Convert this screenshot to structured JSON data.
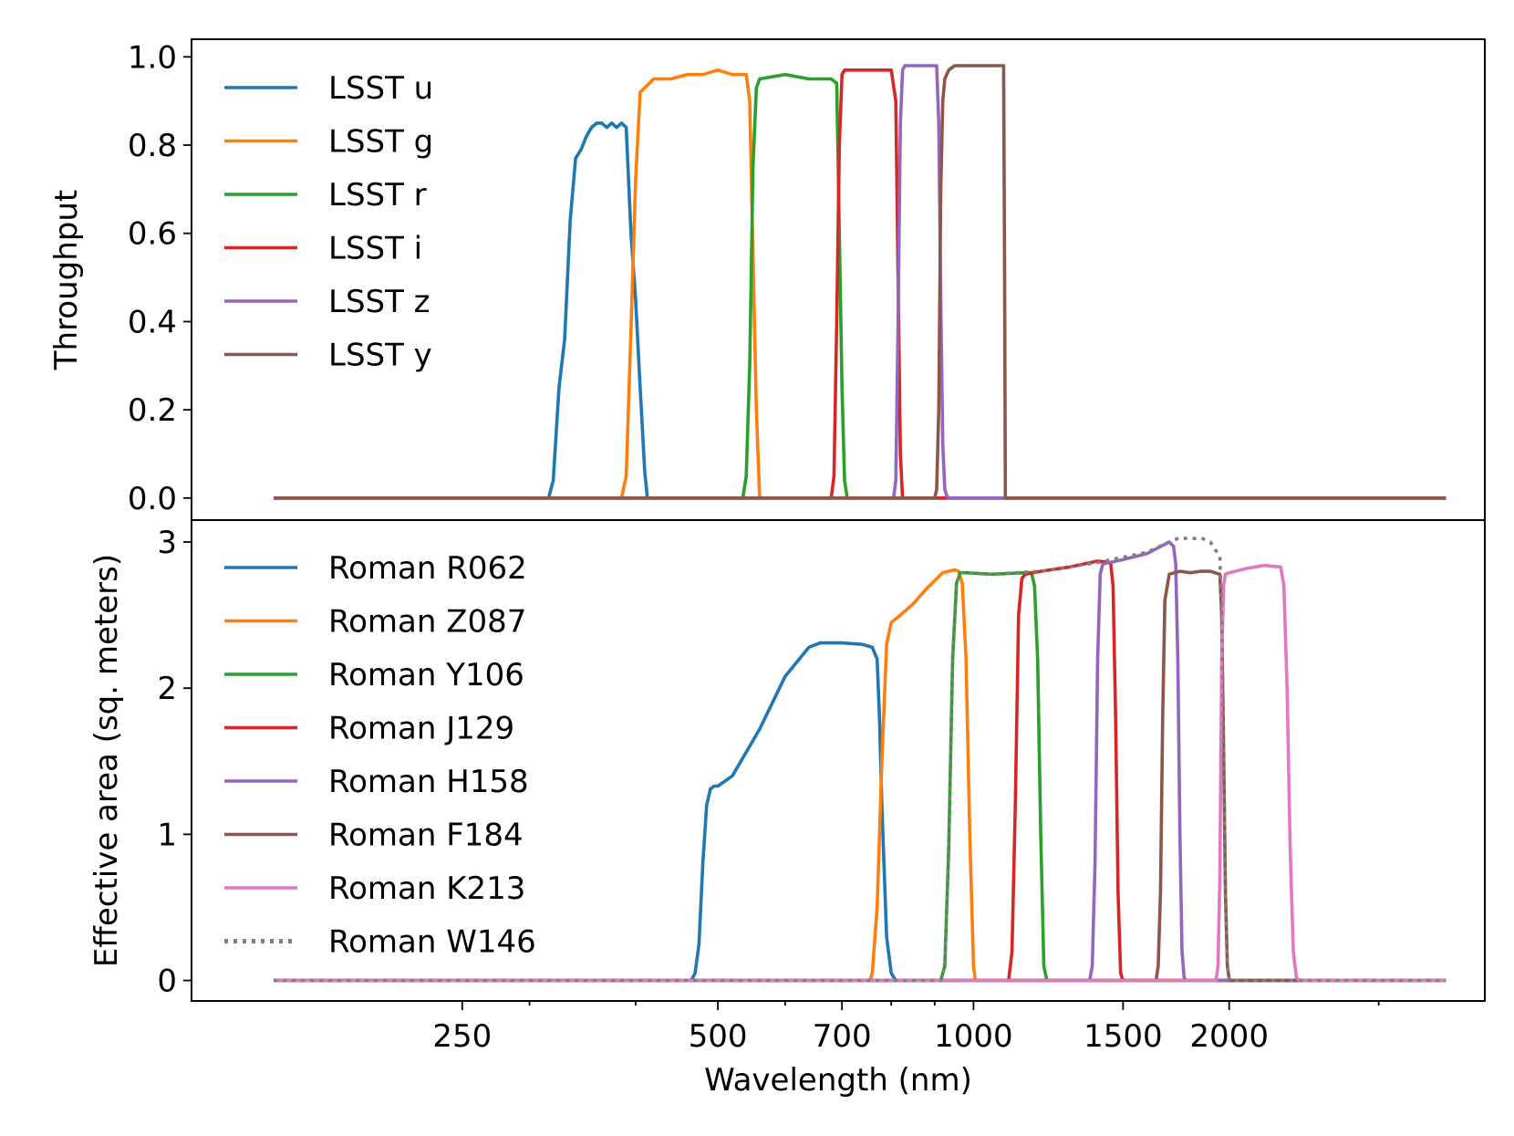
{
  "chart_data": [
    {
      "type": "line",
      "panel": "top",
      "ylabel": "Throughput",
      "xlabel": "",
      "xscale": "log",
      "xlim": [
        120,
        4000
      ],
      "ylim": [
        -0.05,
        1.04
      ],
      "yticks": [
        0.0,
        0.2,
        0.4,
        0.6,
        0.8,
        1.0
      ],
      "ytick_labels": [
        "0.0",
        "0.2",
        "0.4",
        "0.6",
        "0.8",
        "1.0"
      ],
      "legend_position": "top-left",
      "series": [
        {
          "name": "LSST u",
          "color": "#1f77b4",
          "dash": "solid",
          "x": [
            150,
            316,
            320,
            325,
            330,
            335,
            340,
            345,
            350,
            355,
            360,
            365,
            370,
            375,
            380,
            385,
            390,
            395,
            400,
            405,
            410,
            413,
            3600
          ],
          "y": [
            0,
            0,
            0.04,
            0.25,
            0.36,
            0.63,
            0.77,
            0.79,
            0.82,
            0.84,
            0.85,
            0.85,
            0.84,
            0.85,
            0.84,
            0.85,
            0.84,
            0.6,
            0.45,
            0.25,
            0.06,
            0,
            0
          ]
        },
        {
          "name": "LSST g",
          "color": "#ff7f0e",
          "dash": "solid",
          "x": [
            150,
            385,
            390,
            395,
            400,
            405,
            410,
            420,
            440,
            460,
            480,
            500,
            520,
            540,
            545,
            550,
            555,
            560,
            3600
          ],
          "y": [
            0,
            0,
            0.05,
            0.38,
            0.72,
            0.92,
            0.93,
            0.95,
            0.95,
            0.96,
            0.96,
            0.97,
            0.96,
            0.96,
            0.9,
            0.55,
            0.2,
            0,
            0
          ]
        },
        {
          "name": "LSST r",
          "color": "#2ca02c",
          "dash": "solid",
          "x": [
            150,
            535,
            540,
            545,
            550,
            555,
            560,
            600,
            640,
            680,
            690,
            695,
            700,
            705,
            710,
            3600
          ],
          "y": [
            0,
            0,
            0.05,
            0.3,
            0.75,
            0.93,
            0.95,
            0.96,
            0.95,
            0.95,
            0.94,
            0.6,
            0.25,
            0.04,
            0,
            0
          ]
        },
        {
          "name": "LSST i",
          "color": "#d62728",
          "dash": "solid",
          "x": [
            150,
            680,
            685,
            690,
            695,
            700,
            705,
            750,
            800,
            810,
            815,
            820,
            825,
            3600
          ],
          "y": [
            0,
            0,
            0.05,
            0.4,
            0.8,
            0.96,
            0.97,
            0.97,
            0.97,
            0.9,
            0.5,
            0.1,
            0,
            0
          ]
        },
        {
          "name": "LSST z",
          "color": "#9467bd",
          "dash": "solid",
          "x": [
            150,
            805,
            810,
            815,
            820,
            825,
            830,
            860,
            890,
            905,
            910,
            915,
            920,
            925,
            930,
            935,
            1050,
            1100,
            3600
          ],
          "y": [
            0,
            0,
            0.04,
            0.4,
            0.85,
            0.97,
            0.98,
            0.98,
            0.98,
            0.98,
            0.85,
            0.45,
            0.12,
            0.02,
            0.005,
            0,
            0,
            0,
            0
          ]
        },
        {
          "name": "LSST y",
          "color": "#8c564b",
          "dash": "solid",
          "x": [
            150,
            900,
            905,
            910,
            915,
            920,
            925,
            935,
            950,
            1000,
            1050,
            1080,
            1085,
            1088,
            1090,
            3600
          ],
          "y": [
            0,
            0,
            0.02,
            0.2,
            0.7,
            0.9,
            0.95,
            0.97,
            0.98,
            0.98,
            0.98,
            0.98,
            0.98,
            0.5,
            0,
            0
          ]
        }
      ]
    },
    {
      "type": "line",
      "panel": "bottom",
      "ylabel": "Effective area (sq. meters)",
      "xlabel": "Wavelength (nm)",
      "xscale": "log",
      "xlim": [
        120,
        4000
      ],
      "ylim": [
        -0.14,
        3.15
      ],
      "yticks": [
        0,
        1,
        2,
        3
      ],
      "ytick_labels": [
        "0",
        "1",
        "2",
        "3"
      ],
      "xticks": [
        250,
        500,
        700,
        1000,
        1500,
        2000
      ],
      "xtick_labels": [
        "250",
        "500",
        "700",
        "1000",
        "1500",
        "2000"
      ],
      "xminor_ticks": [
        300,
        400,
        600,
        800,
        900,
        3000
      ],
      "legend_position": "top-left",
      "series": [
        {
          "name": "Roman R062",
          "color": "#1f77b4",
          "dash": "solid",
          "x": [
            150,
            465,
            470,
            475,
            480,
            485,
            490,
            495,
            500,
            520,
            560,
            600,
            640,
            660,
            700,
            740,
            760,
            770,
            775,
            780,
            790,
            800,
            810,
            3600
          ],
          "y": [
            0,
            0,
            0.05,
            0.25,
            0.8,
            1.2,
            1.31,
            1.33,
            1.33,
            1.4,
            1.72,
            2.08,
            2.28,
            2.31,
            2.31,
            2.3,
            2.28,
            2.2,
            1.8,
            1.2,
            0.3,
            0.05,
            0,
            0
          ]
        },
        {
          "name": "Roman Z087",
          "color": "#ff7f0e",
          "dash": "solid",
          "x": [
            150,
            755,
            760,
            770,
            780,
            790,
            800,
            820,
            850,
            880,
            920,
            950,
            960,
            970,
            980,
            990,
            1000,
            1005,
            3600
          ],
          "y": [
            0,
            0,
            0.05,
            0.5,
            1.5,
            2.3,
            2.45,
            2.5,
            2.58,
            2.68,
            2.79,
            2.81,
            2.8,
            2.72,
            2.2,
            1.0,
            0.1,
            0,
            0
          ]
        },
        {
          "name": "Roman Y106",
          "color": "#2ca02c",
          "dash": "solid",
          "x": [
            150,
            915,
            925,
            935,
            945,
            955,
            965,
            980,
            1050,
            1150,
            1170,
            1180,
            1190,
            1200,
            1210,
            1220,
            3600
          ],
          "y": [
            0,
            0,
            0.1,
            0.9,
            2.2,
            2.72,
            2.79,
            2.79,
            2.78,
            2.79,
            2.79,
            2.7,
            2.2,
            1.0,
            0.1,
            0,
            0
          ]
        },
        {
          "name": "Roman J129",
          "color": "#d62728",
          "dash": "solid",
          "x": [
            150,
            1100,
            1110,
            1120,
            1130,
            1140,
            1150,
            1200,
            1300,
            1400,
            1450,
            1460,
            1470,
            1480,
            1490,
            1500,
            3600
          ],
          "y": [
            0,
            0,
            0.2,
            1.2,
            2.5,
            2.75,
            2.78,
            2.8,
            2.83,
            2.87,
            2.86,
            2.7,
            1.8,
            0.6,
            0.05,
            0,
            0
          ]
        },
        {
          "name": "Roman H158",
          "color": "#9467bd",
          "dash": "solid",
          "x": [
            150,
            1370,
            1380,
            1390,
            1400,
            1410,
            1420,
            1500,
            1600,
            1700,
            1720,
            1730,
            1740,
            1750,
            1760,
            1770,
            1780,
            3600
          ],
          "y": [
            0,
            0,
            0.1,
            0.8,
            2.2,
            2.78,
            2.85,
            2.88,
            2.92,
            3.0,
            2.97,
            2.85,
            2.2,
            1.0,
            0.2,
            0.02,
            0,
            0
          ]
        },
        {
          "name": "Roman F184",
          "color": "#8c564b",
          "dash": "solid",
          "x": [
            150,
            1640,
            1650,
            1660,
            1670,
            1680,
            1700,
            1750,
            1800,
            1850,
            1900,
            1950,
            1960,
            1970,
            1980,
            1990,
            2000,
            2010,
            3600
          ],
          "y": [
            0,
            0,
            0.1,
            0.6,
            1.8,
            2.6,
            2.78,
            2.8,
            2.79,
            2.8,
            2.8,
            2.78,
            2.5,
            1.6,
            0.6,
            0.1,
            0.01,
            0,
            0
          ]
        },
        {
          "name": "Roman K213",
          "color": "#e377c2",
          "dash": "solid",
          "x": [
            150,
            1930,
            1940,
            1950,
            1960,
            1970,
            1980,
            2000,
            2100,
            2200,
            2300,
            2320,
            2340,
            2360,
            2380,
            2400,
            2420,
            3600
          ],
          "y": [
            0,
            0,
            0.1,
            0.7,
            2.2,
            2.7,
            2.78,
            2.79,
            2.82,
            2.84,
            2.83,
            2.7,
            2.0,
            0.9,
            0.2,
            0.02,
            0,
            0
          ]
        },
        {
          "name": "Roman W146",
          "color": "#7f7f7f",
          "dash": "dotted",
          "x": [
            150,
            915,
            925,
            935,
            945,
            955,
            965,
            1050,
            1200,
            1400,
            1600,
            1700,
            1750,
            1800,
            1850,
            1900,
            1950,
            1960,
            1970,
            1980,
            1990,
            2000,
            2010,
            3600
          ],
          "y": [
            0,
            0,
            0.1,
            0.9,
            2.2,
            2.72,
            2.79,
            2.78,
            2.8,
            2.86,
            2.93,
            3.0,
            3.03,
            3.02,
            3.03,
            3.0,
            2.9,
            2.5,
            1.6,
            0.6,
            0.1,
            0.01,
            0,
            0
          ]
        }
      ]
    }
  ]
}
